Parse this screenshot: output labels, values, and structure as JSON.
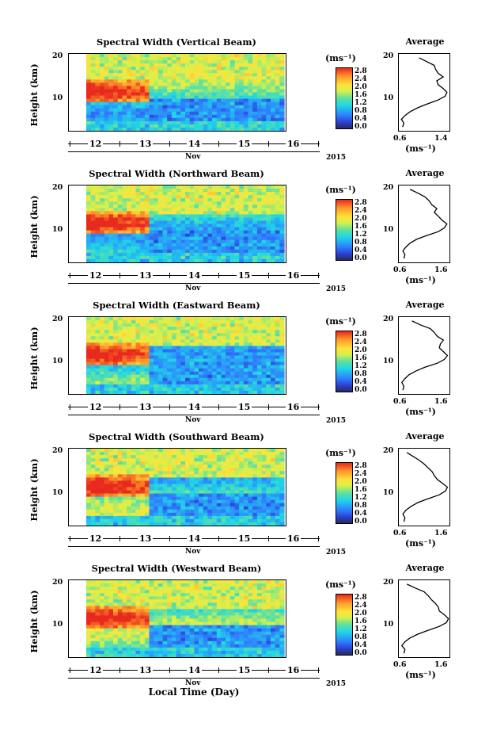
{
  "chart_data": [
    {
      "type": "heatmap",
      "title": "Spectral Width (Vertical Beam)",
      "ylabel": "Height (km)",
      "yticks": [
        "20",
        "10"
      ],
      "xticks": [
        "12",
        "13",
        "14",
        "15",
        "16"
      ],
      "month": "Nov",
      "year": "2015",
      "colorbar_unit": "(ms⁻¹)",
      "colorbar_ticks": [
        "2.8",
        "2.4",
        "2.0",
        "1.6",
        "1.2",
        "0.8",
        "0.4",
        "0.0"
      ],
      "colorbar_range": [
        0.0,
        3.0
      ],
      "average_title": "Average",
      "average_unit": "(ms⁻¹)",
      "average_xticks": [
        "0.6",
        "1.4"
      ],
      "average_xlim": [
        0.6,
        1.4
      ],
      "average_yticks": [
        "20",
        "10"
      ],
      "average_profile": {
        "height": [
          2,
          3,
          4,
          5,
          6,
          7,
          8,
          9,
          10,
          11,
          12,
          13,
          14,
          15,
          16,
          17,
          18,
          19,
          20
        ],
        "width": [
          0.66,
          0.68,
          0.64,
          0.7,
          0.78,
          0.9,
          1.05,
          1.22,
          1.33,
          1.36,
          1.3,
          1.22,
          1.2,
          1.3,
          1.22,
          1.18,
          1.16,
          1.04,
          0.92
        ]
      }
    },
    {
      "type": "heatmap",
      "title": "Spectral Width (Northward Beam)",
      "ylabel": "Height (km)",
      "yticks": [
        "20",
        "10"
      ],
      "xticks": [
        "12",
        "13",
        "14",
        "15",
        "16"
      ],
      "month": "Nov",
      "year": "2015",
      "colorbar_unit": "(ms⁻¹)",
      "colorbar_ticks": [
        "2.8",
        "2.4",
        "2.0",
        "1.6",
        "1.2",
        "0.8",
        "0.4",
        "0.0"
      ],
      "colorbar_range": [
        0.0,
        3.0
      ],
      "average_title": "Average",
      "average_unit": "(ms⁻¹)",
      "average_xticks": [
        "0.6",
        "1.6"
      ],
      "average_xlim": [
        0.6,
        1.6
      ],
      "average_yticks": [
        "20",
        "10"
      ],
      "average_profile": {
        "height": [
          2,
          3,
          4,
          5,
          6,
          7,
          8,
          9,
          10,
          11,
          12,
          13,
          14,
          15,
          16,
          17,
          18,
          19,
          20
        ],
        "width": [
          0.7,
          0.72,
          0.68,
          0.74,
          0.82,
          0.95,
          1.15,
          1.38,
          1.5,
          1.55,
          1.45,
          1.38,
          1.3,
          1.35,
          1.25,
          1.2,
          1.12,
          0.98,
          0.82
        ]
      }
    },
    {
      "type": "heatmap",
      "title": "Spectral Width (Eastward Beam)",
      "ylabel": "Height (km)",
      "yticks": [
        "20",
        "10"
      ],
      "xticks": [
        "12",
        "13",
        "14",
        "15",
        "16"
      ],
      "month": "Nov",
      "year": "2015",
      "colorbar_unit": "(ms⁻¹)",
      "colorbar_ticks": [
        "2.8",
        "2.4",
        "2.0",
        "1.6",
        "1.2",
        "0.8",
        "0.4",
        "0.0"
      ],
      "colorbar_range": [
        0.0,
        3.0
      ],
      "average_title": "Average",
      "average_unit": "(ms⁻¹)",
      "average_xticks": [
        "0.6",
        "1.6"
      ],
      "average_xlim": [
        0.6,
        1.6
      ],
      "average_yticks": [
        "20",
        "10"
      ],
      "average_profile": {
        "height": [
          2,
          3,
          4,
          5,
          6,
          7,
          8,
          9,
          10,
          11,
          12,
          13,
          14,
          15,
          16,
          17,
          18,
          19,
          20
        ],
        "width": [
          0.68,
          0.7,
          0.66,
          0.72,
          0.8,
          0.94,
          1.12,
          1.36,
          1.5,
          1.56,
          1.48,
          1.4,
          1.42,
          1.48,
          1.36,
          1.3,
          1.22,
          1.02,
          0.86
        ]
      }
    },
    {
      "type": "heatmap",
      "title": "Spectral Width (Southward Beam)",
      "ylabel": "Height (km)",
      "yticks": [
        "20",
        "10"
      ],
      "xticks": [
        "12",
        "13",
        "14",
        "15",
        "16"
      ],
      "month": "Nov",
      "year": "2015",
      "colorbar_unit": "(ms⁻¹)",
      "colorbar_ticks": [
        "2.8",
        "2.4",
        "2.0",
        "1.6",
        "1.2",
        "0.8",
        "0.4",
        "0.0"
      ],
      "colorbar_range": [
        0.0,
        3.0
      ],
      "average_title": "Average",
      "average_unit": "(ms⁻¹)",
      "average_xticks": [
        "0.6",
        "1.6"
      ],
      "average_xlim": [
        0.6,
        1.6
      ],
      "average_yticks": [
        "20",
        "10"
      ],
      "average_profile": {
        "height": [
          2,
          3,
          4,
          5,
          6,
          7,
          8,
          9,
          10,
          11,
          12,
          13,
          14,
          15,
          16,
          17,
          18,
          19,
          20
        ],
        "width": [
          0.7,
          0.72,
          0.68,
          0.74,
          0.84,
          0.98,
          1.18,
          1.4,
          1.52,
          1.56,
          1.46,
          1.36,
          1.3,
          1.26,
          1.18,
          1.1,
          1.0,
          0.88,
          0.76
        ]
      }
    },
    {
      "type": "heatmap",
      "title": "Spectral Width (Westward Beam)",
      "ylabel": "Height (km)",
      "yticks": [
        "20",
        "10"
      ],
      "xticks": [
        "12",
        "13",
        "14",
        "15",
        "16"
      ],
      "month": "Nov",
      "year": "2015",
      "colorbar_unit": "(ms⁻¹)",
      "colorbar_ticks": [
        "2.8",
        "2.4",
        "2.0",
        "1.6",
        "1.2",
        "0.8",
        "0.4",
        "0.0"
      ],
      "colorbar_range": [
        0.0,
        3.0
      ],
      "average_title": "Average",
      "average_unit": "(ms⁻¹)",
      "average_xticks": [
        "0.6",
        "1.6"
      ],
      "average_xlim": [
        0.6,
        1.6
      ],
      "average_yticks": [
        "20",
        "10"
      ],
      "average_profile": {
        "height": [
          2,
          3,
          4,
          5,
          6,
          7,
          8,
          9,
          10,
          11,
          12,
          13,
          14,
          15,
          16,
          17,
          18,
          19,
          20
        ],
        "width": [
          0.7,
          0.72,
          0.66,
          0.72,
          0.82,
          0.98,
          1.18,
          1.4,
          1.54,
          1.58,
          1.5,
          1.4,
          1.38,
          1.32,
          1.24,
          1.18,
          1.1,
          0.92,
          0.76
        ]
      }
    }
  ],
  "xlabel": "Local Time (Day)"
}
